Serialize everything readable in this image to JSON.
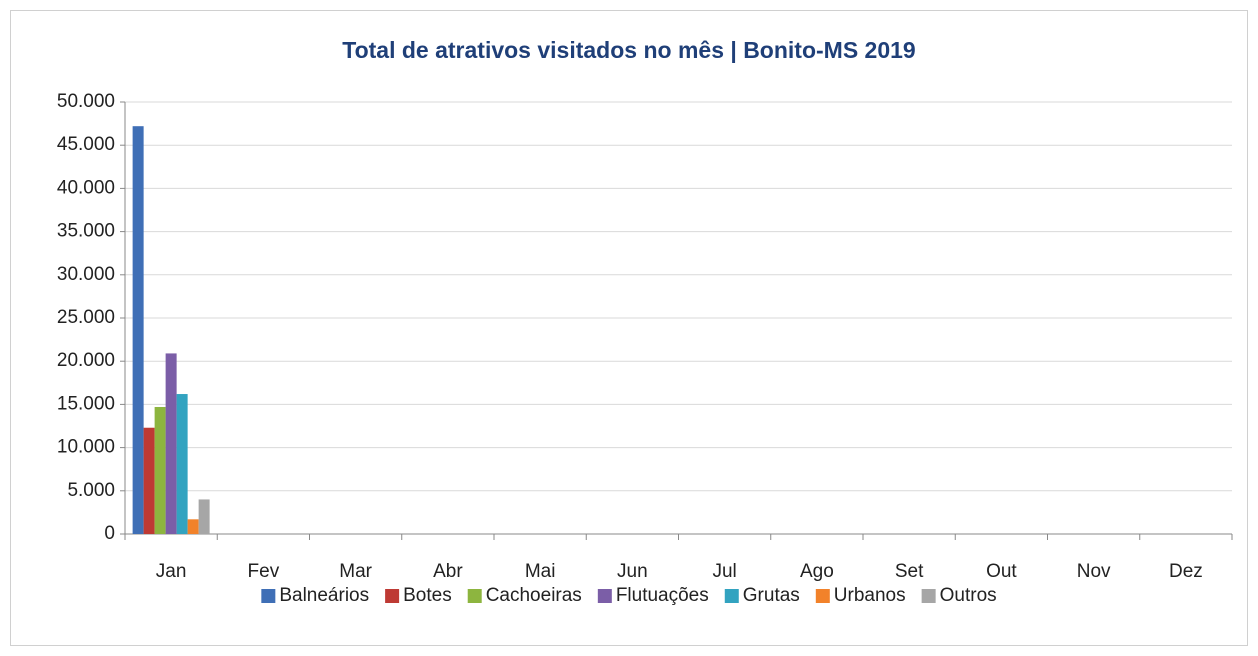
{
  "chart_data": {
    "type": "bar",
    "title": "Total de atrativos visitados no mês | Bonito-MS 2019",
    "categories": [
      "Jan",
      "Fev",
      "Mar",
      "Abr",
      "Mai",
      "Jun",
      "Jul",
      "Ago",
      "Set",
      "Out",
      "Nov",
      "Dez"
    ],
    "series": [
      {
        "name": "Balneários",
        "color": "#3f6fb6",
        "values": [
          47200,
          null,
          null,
          null,
          null,
          null,
          null,
          null,
          null,
          null,
          null,
          null
        ]
      },
      {
        "name": "Botes",
        "color": "#be3a34",
        "values": [
          12300,
          null,
          null,
          null,
          null,
          null,
          null,
          null,
          null,
          null,
          null,
          null
        ]
      },
      {
        "name": "Cachoeiras",
        "color": "#8db53f",
        "values": [
          14700,
          null,
          null,
          null,
          null,
          null,
          null,
          null,
          null,
          null,
          null,
          null
        ]
      },
      {
        "name": "Flutuações",
        "color": "#7b5ea7",
        "values": [
          20900,
          null,
          null,
          null,
          null,
          null,
          null,
          null,
          null,
          null,
          null,
          null
        ]
      },
      {
        "name": "Grutas",
        "color": "#32a3c0",
        "values": [
          16200,
          null,
          null,
          null,
          null,
          null,
          null,
          null,
          null,
          null,
          null,
          null
        ]
      },
      {
        "name": "Urbanos",
        "color": "#f2822a",
        "values": [
          1700,
          null,
          null,
          null,
          null,
          null,
          null,
          null,
          null,
          null,
          null,
          null
        ]
      },
      {
        "name": "Outros",
        "color": "#a6a6a6",
        "values": [
          4000,
          null,
          null,
          null,
          null,
          null,
          null,
          null,
          null,
          null,
          null,
          null
        ]
      }
    ],
    "ylim": [
      0,
      50000
    ],
    "yticks": [
      0,
      {
        "value": 5000,
        "label": "5.000"
      },
      {
        "value": 10000,
        "label": "10.000"
      },
      {
        "value": 15000,
        "label": "15.000"
      },
      {
        "value": 20000,
        "label": "20.000"
      },
      {
        "value": 25000,
        "label": "25.000"
      },
      {
        "value": 30000,
        "label": "30.000"
      },
      {
        "value": 35000,
        "label": "35.000"
      },
      {
        "value": 40000,
        "label": "40.000"
      },
      {
        "value": 45000,
        "label": "45.000"
      },
      {
        "value": 50000,
        "label": "50.000"
      }
    ],
    "grid": true,
    "legend": "bottom"
  }
}
